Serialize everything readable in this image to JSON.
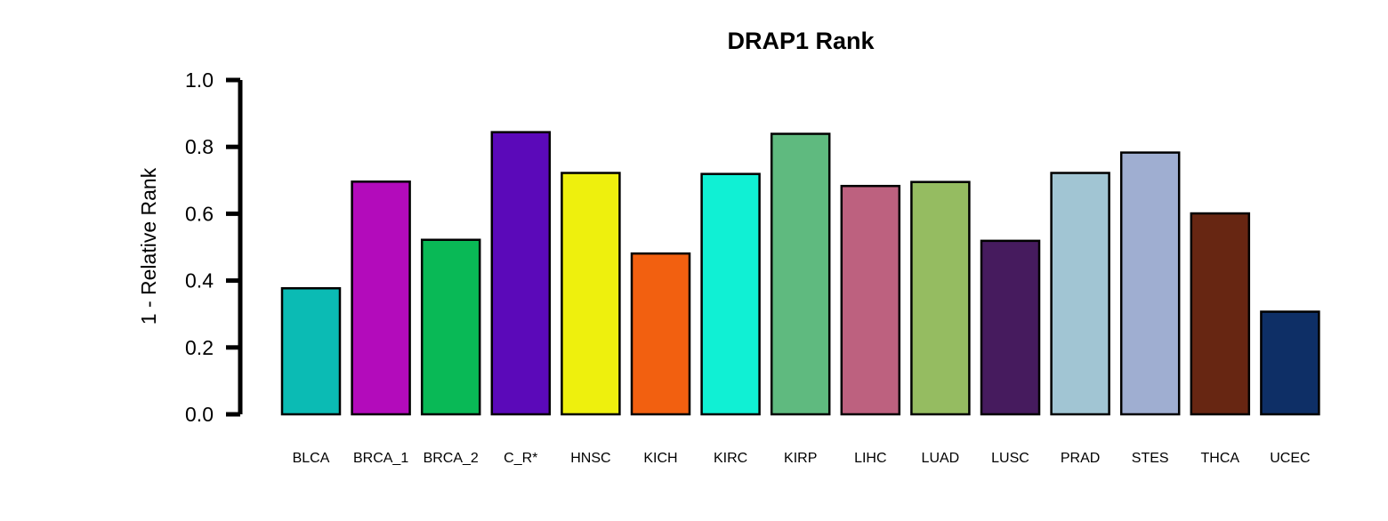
{
  "chart_data": {
    "type": "bar",
    "title": "DRAP1 Rank",
    "xlabel": "",
    "ylabel": "1 - Relative Rank",
    "ylim": [
      0,
      1
    ],
    "yticks": [
      "0.0",
      "0.2",
      "0.4",
      "0.6",
      "0.8",
      "1.0"
    ],
    "grid": false,
    "legend": "none",
    "categories": [
      "BLCA",
      "BRCA_1",
      "BRCA_2",
      "C_R*",
      "HNSC",
      "KICH",
      "KIRC",
      "KIRP",
      "LIHC",
      "LUAD",
      "LUSC",
      "PRAD",
      "STES",
      "THCA",
      "UCEC"
    ],
    "values": [
      0.377,
      0.696,
      0.522,
      0.844,
      0.722,
      0.481,
      0.719,
      0.839,
      0.683,
      0.695,
      0.519,
      0.722,
      0.783,
      0.601,
      0.307
    ],
    "colors": [
      "#0bbbb4",
      "#b30bbb",
      "#09b956",
      "#5b09b9",
      "#eef00d",
      "#f26010",
      "#10f0d4",
      "#5fba7f",
      "#bd617f",
      "#95bc61",
      "#461b5e",
      "#a1c5d3",
      "#9faed1",
      "#672612",
      "#0e2f66"
    ]
  }
}
